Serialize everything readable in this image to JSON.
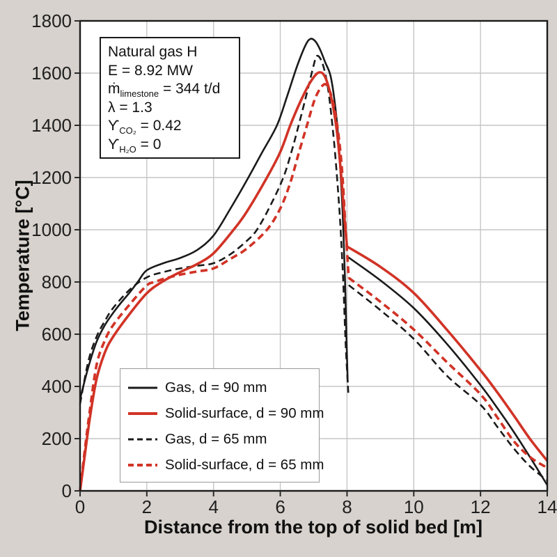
{
  "figure": {
    "background_color": "#d7d2cd",
    "plot_background": "#ffffff",
    "grid_color": "#c6c6c6",
    "frame_color": "#1a1a1a",
    "tick_color": "#2a2a2a",
    "text_color": "#1f1f1f",
    "accent_red": "#d13326",
    "accent_black": "#1a1a1a"
  },
  "chart_data": {
    "type": "line",
    "title": "",
    "xlabel": "Distance from the top of solid bed [m]",
    "ylabel": "Temperature [°C]",
    "xlim": [
      0,
      14
    ],
    "ylim": [
      0,
      1800
    ],
    "x_ticks": [
      0,
      2,
      4,
      6,
      8,
      10,
      12,
      14
    ],
    "y_ticks": [
      0,
      200,
      400,
      600,
      800,
      1000,
      1200,
      1400,
      1600,
      1800
    ],
    "grid": true,
    "legend_position": "inside lower-left",
    "annotation": {
      "lines": [
        {
          "pre": "Natural gas H",
          "sub": "",
          "post": ""
        },
        {
          "pre": "E = 8.92 MW",
          "sub": "",
          "post": ""
        },
        {
          "pre": "ṁ",
          "sub": "limestone",
          "post": " = 344 t/d"
        },
        {
          "pre": "λ = 1.3",
          "sub": "",
          "post": ""
        },
        {
          "pre": "ϒ",
          "sub": "CO₂",
          "post": " = 0.42"
        },
        {
          "pre": "ϒ",
          "sub": "H₂O",
          "post": " = 0"
        }
      ]
    },
    "series": [
      {
        "id": "gas-90",
        "label": "Gas, d = 90 mm",
        "color": "#1a1a1a",
        "style": "solid",
        "width": 2.6,
        "segments": [
          [
            [
              0,
              352
            ],
            [
              0.25,
              475
            ],
            [
              0.5,
              573
            ],
            [
              0.75,
              636
            ],
            [
              1,
              683
            ],
            [
              1.25,
              724
            ],
            [
              1.5,
              762
            ],
            [
              1.75,
              804
            ],
            [
              2,
              845
            ],
            [
              2.5,
              872
            ],
            [
              3,
              892
            ],
            [
              3.5,
              922
            ],
            [
              4,
              978
            ],
            [
              4.5,
              1080
            ],
            [
              5,
              1190
            ],
            [
              5.45,
              1295
            ],
            [
              5.9,
              1400
            ],
            [
              6.2,
              1510
            ],
            [
              6.5,
              1625
            ],
            [
              6.75,
              1705
            ],
            [
              6.9,
              1731
            ],
            [
              7.05,
              1722
            ],
            [
              7.2,
              1688
            ],
            [
              7.35,
              1640
            ],
            [
              7.5,
              1592
            ],
            [
              7.62,
              1500
            ],
            [
              7.72,
              1380
            ],
            [
              7.8,
              1230
            ],
            [
              7.88,
              1030
            ],
            [
              7.94,
              800
            ],
            [
              7.99,
              560
            ],
            [
              8.02,
              415
            ]
          ],
          [
            [
              8,
              898
            ],
            [
              9,
              806
            ],
            [
              10,
              700
            ],
            [
              11,
              562
            ],
            [
              12,
              405
            ],
            [
              12.5,
              318
            ],
            [
              13,
              225
            ],
            [
              13.5,
              126
            ],
            [
              14,
              22
            ]
          ]
        ]
      },
      {
        "id": "gas-65",
        "label": "Gas, d = 65 mm",
        "color": "#1a1a1a",
        "style": "dashed",
        "width": 2.6,
        "segments": [
          [
            [
              0,
              333
            ],
            [
              0.25,
              498
            ],
            [
              0.5,
              592
            ],
            [
              0.75,
              652
            ],
            [
              1,
              702
            ],
            [
              1.5,
              772
            ],
            [
              2,
              818
            ],
            [
              2.5,
              838
            ],
            [
              3,
              852
            ],
            [
              3.5,
              862
            ],
            [
              4,
              872
            ],
            [
              4.5,
              906
            ],
            [
              5,
              958
            ],
            [
              5.3,
              1000
            ],
            [
              5.7,
              1092
            ],
            [
              6.09,
              1200
            ],
            [
              6.35,
              1305
            ],
            [
              6.55,
              1400
            ],
            [
              6.8,
              1525
            ],
            [
              7,
              1630
            ],
            [
              7.1,
              1666
            ],
            [
              7.25,
              1642
            ],
            [
              7.4,
              1565
            ],
            [
              7.52,
              1450
            ],
            [
              7.65,
              1280
            ],
            [
              7.78,
              1060
            ],
            [
              7.88,
              820
            ],
            [
              7.96,
              560
            ],
            [
              8.04,
              373
            ]
          ],
          [
            [
              8.05,
              788
            ],
            [
              9,
              692
            ],
            [
              10,
              582
            ],
            [
              11,
              440
            ],
            [
              12,
              330
            ],
            [
              12.5,
              246
            ],
            [
              13,
              162
            ],
            [
              13.5,
              92
            ],
            [
              14,
              40
            ]
          ]
        ]
      },
      {
        "id": "surface-90",
        "label": "Solid-surface, d = 90 mm",
        "color": "#d13326",
        "style": "solid",
        "width": 3.6,
        "segments": [
          [
            [
              0,
              0
            ],
            [
              0.15,
              145
            ],
            [
              0.3,
              285
            ],
            [
              0.5,
              432
            ],
            [
              0.75,
              532
            ],
            [
              1,
              592
            ],
            [
              1.5,
              680
            ],
            [
              2,
              757
            ],
            [
              2.45,
              800
            ],
            [
              3,
              838
            ],
            [
              3.5,
              868
            ],
            [
              4,
              910
            ],
            [
              4.6,
              1000
            ],
            [
              5,
              1070
            ],
            [
              5.6,
              1200
            ],
            [
              6,
              1298
            ],
            [
              6.3,
              1400
            ],
            [
              6.6,
              1490
            ],
            [
              6.9,
              1565
            ],
            [
              7.15,
              1602
            ],
            [
              7.35,
              1583
            ],
            [
              7.55,
              1492
            ],
            [
              7.7,
              1372
            ],
            [
              7.82,
              1215
            ],
            [
              7.92,
              1050
            ],
            [
              8,
              936
            ]
          ],
          [
            [
              8,
              936
            ],
            [
              9,
              858
            ],
            [
              10,
              758
            ],
            [
              11,
              616
            ],
            [
              12,
              462
            ],
            [
              12.5,
              378
            ],
            [
              13,
              288
            ],
            [
              13.5,
              196
            ],
            [
              14,
              115
            ]
          ]
        ]
      },
      {
        "id": "surface-65",
        "label": "Solid-surface, d = 65 mm",
        "color": "#d13326",
        "style": "dashed",
        "width": 3.6,
        "segments": [
          [
            [
              0,
              0
            ],
            [
              0.15,
              165
            ],
            [
              0.3,
              315
            ],
            [
              0.5,
              486
            ],
            [
              0.75,
              578
            ],
            [
              1,
              636
            ],
            [
              1.5,
              716
            ],
            [
              2,
              787
            ],
            [
              2.25,
              800
            ],
            [
              2.5,
              812
            ],
            [
              3,
              828
            ],
            [
              3.5,
              840
            ],
            [
              4,
              852
            ],
            [
              4.5,
              888
            ],
            [
              5,
              928
            ],
            [
              5.6,
              1000
            ],
            [
              6,
              1082
            ],
            [
              6.3,
              1180
            ],
            [
              6.55,
              1292
            ],
            [
              6.8,
              1400
            ],
            [
              7.05,
              1505
            ],
            [
              7.3,
              1556
            ],
            [
              7.45,
              1540
            ],
            [
              7.6,
              1478
            ],
            [
              7.73,
              1378
            ],
            [
              7.85,
              1230
            ],
            [
              7.95,
              1020
            ],
            [
              8.05,
              816
            ]
          ],
          [
            [
              8.05,
              816
            ],
            [
              9,
              724
            ],
            [
              10,
              618
            ],
            [
              11,
              492
            ],
            [
              12,
              370
            ],
            [
              12.5,
              282
            ],
            [
              13,
              190
            ],
            [
              13.5,
              128
            ],
            [
              14,
              88
            ]
          ]
        ]
      }
    ],
    "legend_order": [
      "gas-90",
      "surface-90",
      "gas-65",
      "surface-65"
    ]
  }
}
